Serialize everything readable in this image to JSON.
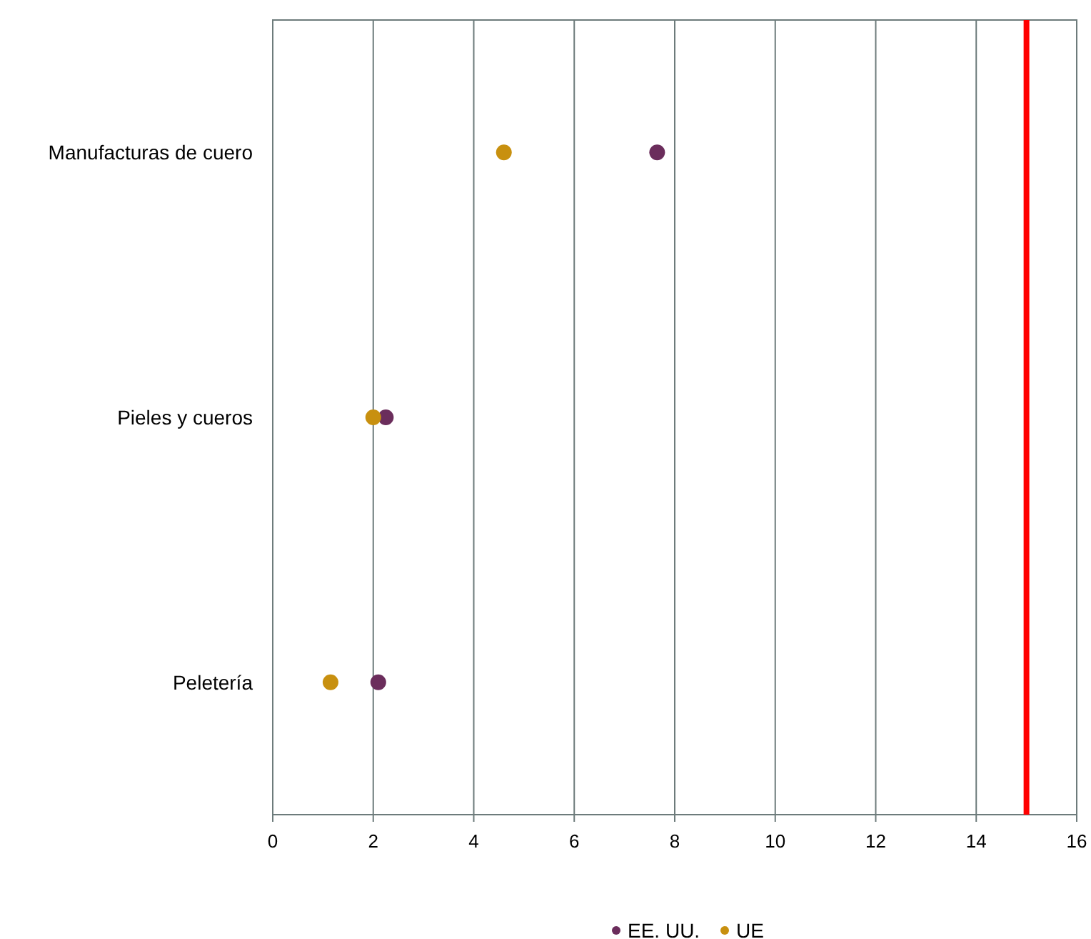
{
  "chart_data": {
    "type": "scatter",
    "orientation": "horizontal",
    "categories": [
      "Manufacturas de cuero",
      "Pieles y cueros",
      "Peletería"
    ],
    "series": [
      {
        "name": "EE. UU.",
        "color": "#6b2d5c",
        "values": [
          7.65,
          2.25,
          2.1
        ]
      },
      {
        "name": "UE",
        "color": "#c8900f",
        "values": [
          4.6,
          2.0,
          1.15
        ]
      }
    ],
    "xlim": [
      0,
      16
    ],
    "xticks": [
      0,
      2,
      4,
      6,
      8,
      10,
      12,
      14,
      16
    ],
    "grid": "x",
    "legend": "bottom",
    "marker": "circle",
    "ref_lines": [
      {
        "axis": "x",
        "value": 15,
        "color": "#ff0000"
      }
    ]
  }
}
